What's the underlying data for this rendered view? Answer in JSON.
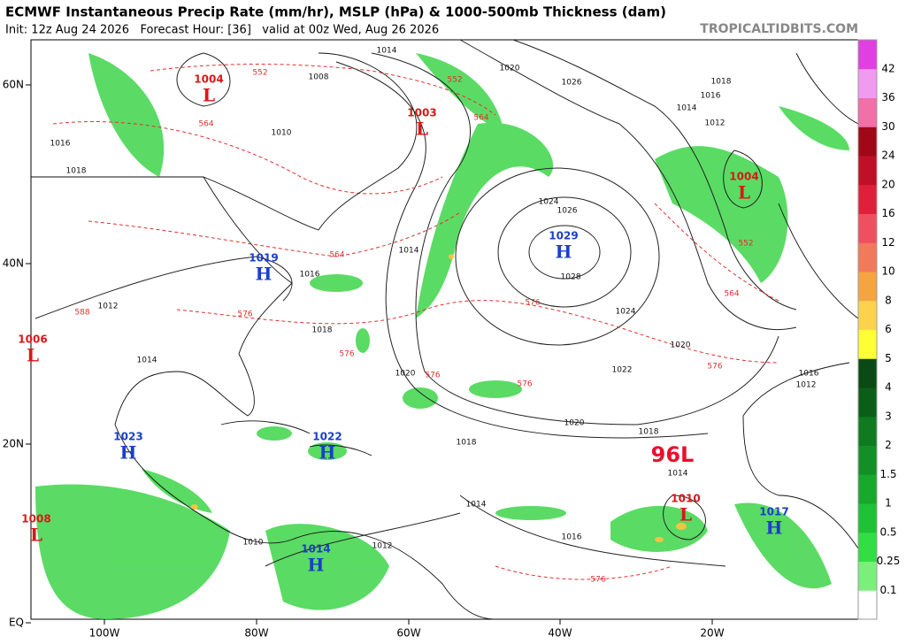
{
  "header": {
    "title": "ECMWF Instantaneous Precip Rate (mm/hr), MSLP (hPa) & 1000-500mb Thickness (dam)",
    "subtitle": "Init: 12z Aug 24 2026   Forecast Hour: [36]   valid at 00z Wed, Aug 26 2026",
    "source": "TROPICALTIDBITS.COM"
  },
  "map": {
    "lat_labels": [
      "60N",
      "40N",
      "20N",
      "EQ"
    ],
    "lon_labels": [
      "100W",
      "80W",
      "60W",
      "40W",
      "20W"
    ],
    "centers": [
      {
        "letter": "L",
        "value": "1004"
      },
      {
        "letter": "L",
        "value": "1003"
      },
      {
        "letter": "L",
        "value": "1006"
      },
      {
        "letter": "L",
        "value": "1008"
      },
      {
        "letter": "L",
        "value": "1004"
      },
      {
        "letter": "L",
        "value": "1010"
      },
      {
        "letter": "H",
        "value": "1019"
      },
      {
        "letter": "H",
        "value": "1029"
      },
      {
        "letter": "H",
        "value": "1023"
      },
      {
        "letter": "H",
        "value": "1022"
      },
      {
        "letter": "H",
        "value": "1017"
      },
      {
        "letter": "H",
        "value": "1014"
      }
    ],
    "storm_label": "96L",
    "isobar_labels": [
      "1014",
      "1020",
      "1026",
      "1018",
      "1016",
      "1014",
      "1012",
      "1010",
      "1008",
      "1016",
      "1018",
      "1024",
      "1026",
      "1028",
      "1024",
      "1018",
      "1020",
      "1022",
      "1020",
      "1020",
      "1018",
      "1018",
      "1016",
      "1014",
      "1012",
      "1010",
      "1014",
      "1016",
      "1014",
      "1012",
      "1016",
      "1012",
      "1014"
    ],
    "thickness_labels": [
      "552",
      "564",
      "564",
      "576",
      "576",
      "576",
      "576",
      "588",
      "552",
      "564",
      "576",
      "576",
      "576",
      "552",
      "564"
    ]
  },
  "colorbar": {
    "labels": [
      "0.1",
      "0.25",
      "0.5",
      "1",
      "1.5",
      "2",
      "3",
      "4",
      "5",
      "6",
      "8",
      "10",
      "12",
      "16",
      "20",
      "24",
      "30",
      "36",
      "42"
    ],
    "colors": [
      "#ffffff",
      "#7af07a",
      "#33dd44",
      "#1ec234",
      "#18a82c",
      "#148f26",
      "#107a20",
      "#0b5e18",
      "#0a4a14",
      "#ffff33",
      "#ffd24d",
      "#f5a442",
      "#f07a5a",
      "#ee5060",
      "#e0203a",
      "#c01028",
      "#a00818",
      "#f070a8",
      "#f09af0",
      "#e040e0"
    ]
  }
}
